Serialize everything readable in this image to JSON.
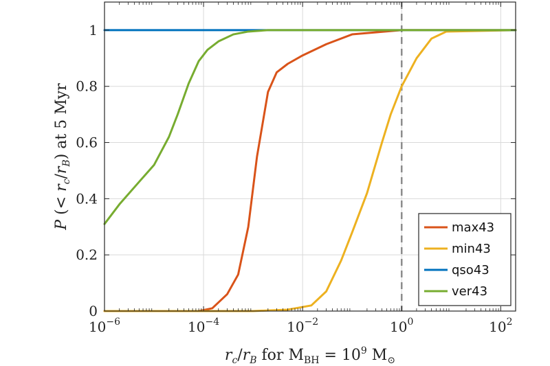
{
  "chart_data": {
    "type": "line",
    "x_scale": "log",
    "xlim": [
      1e-06,
      200
    ],
    "ylim": [
      0,
      1.1
    ],
    "grid": true,
    "legend_position": "bottom-right",
    "xlabel": "r_c/r_B for M_BH = 10^9 M_⊙",
    "ylabel": "P (< r_c/r_B) at 5 Myr",
    "x_ticks": [
      {
        "value": 1e-06,
        "base": "10",
        "exp": "−6"
      },
      {
        "value": 0.0001,
        "base": "10",
        "exp": "−4"
      },
      {
        "value": 0.01,
        "base": "10",
        "exp": "−2"
      },
      {
        "value": 1,
        "base": "10",
        "exp": "0"
      },
      {
        "value": 100,
        "base": "10",
        "exp": "2"
      }
    ],
    "y_ticks": [
      {
        "value": 0,
        "label": "0"
      },
      {
        "value": 0.2,
        "label": "0.2"
      },
      {
        "value": 0.4,
        "label": "0.4"
      },
      {
        "value": 0.6,
        "label": "0.6"
      },
      {
        "value": 0.8,
        "label": "0.8"
      },
      {
        "value": 1,
        "label": "1"
      }
    ],
    "reference_line": {
      "x": 1,
      "style": "dashed",
      "color": "#8c8c8c"
    },
    "series": [
      {
        "name": "max43",
        "color": "#d95319",
        "points": [
          [
            1e-06,
            0
          ],
          [
            8e-05,
            0
          ],
          [
            0.00015,
            0.01
          ],
          [
            0.0003,
            0.06
          ],
          [
            0.0005,
            0.13
          ],
          [
            0.0008,
            0.3
          ],
          [
            0.0012,
            0.55
          ],
          [
            0.002,
            0.78
          ],
          [
            0.003,
            0.85
          ],
          [
            0.005,
            0.88
          ],
          [
            0.01,
            0.91
          ],
          [
            0.03,
            0.95
          ],
          [
            0.1,
            0.985
          ],
          [
            1,
            1
          ],
          [
            200,
            1
          ]
        ]
      },
      {
        "name": "min43",
        "color": "#edb120",
        "points": [
          [
            1e-06,
            0
          ],
          [
            0.001,
            0
          ],
          [
            0.005,
            0.005
          ],
          [
            0.015,
            0.02
          ],
          [
            0.03,
            0.07
          ],
          [
            0.06,
            0.18
          ],
          [
            0.1,
            0.28
          ],
          [
            0.2,
            0.42
          ],
          [
            0.4,
            0.6
          ],
          [
            0.6,
            0.7
          ],
          [
            1,
            0.8
          ],
          [
            2,
            0.9
          ],
          [
            4,
            0.97
          ],
          [
            8,
            0.995
          ],
          [
            200,
            1
          ]
        ]
      },
      {
        "name": "qso43",
        "color": "#0072bd",
        "points": [
          [
            1e-06,
            1
          ],
          [
            200,
            1
          ]
        ]
      },
      {
        "name": "ver43",
        "color": "#77ac30",
        "points": [
          [
            1e-06,
            0.31
          ],
          [
            2e-06,
            0.38
          ],
          [
            5e-06,
            0.46
          ],
          [
            1e-05,
            0.52
          ],
          [
            2e-05,
            0.62
          ],
          [
            3e-05,
            0.7
          ],
          [
            5e-05,
            0.81
          ],
          [
            8e-05,
            0.89
          ],
          [
            0.00012,
            0.93
          ],
          [
            0.0002,
            0.96
          ],
          [
            0.0004,
            0.985
          ],
          [
            0.0008,
            0.995
          ],
          [
            0.002,
            1
          ],
          [
            200,
            1
          ]
        ]
      }
    ]
  }
}
